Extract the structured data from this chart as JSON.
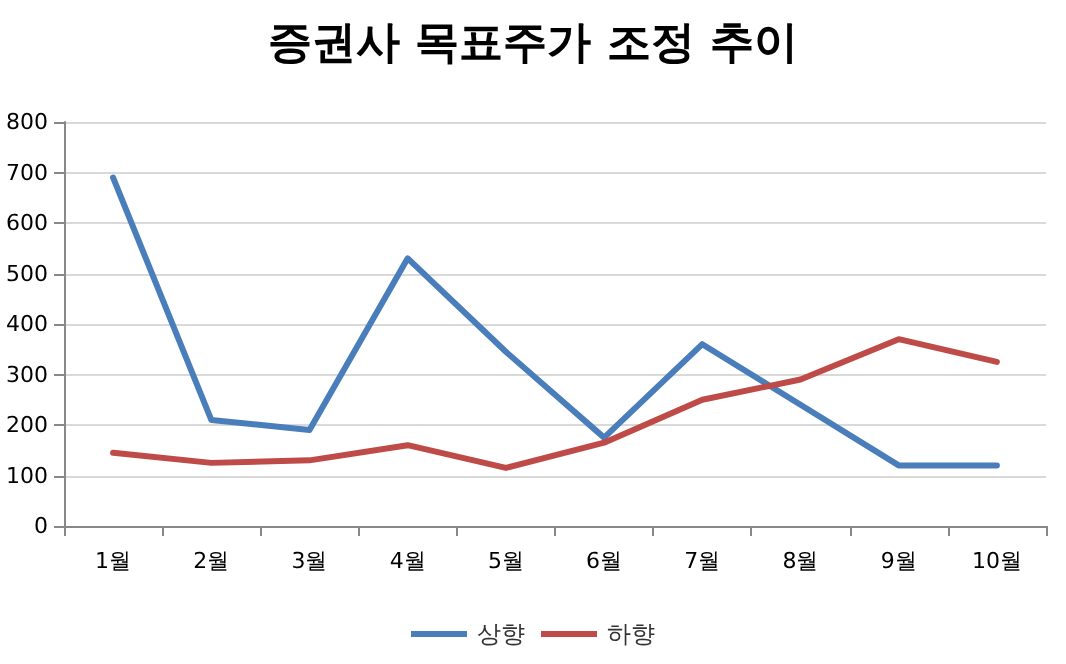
{
  "chart_data": {
    "type": "line",
    "title": "증권사 목표주가 조정 추이",
    "categories": [
      "1월",
      "2월",
      "3월",
      "4월",
      "5월",
      "6월",
      "7월",
      "8월",
      "9월",
      "10월"
    ],
    "series": [
      {
        "name": "상향",
        "color": "#4a7ebb",
        "values": [
          690,
          210,
          190,
          530,
          345,
          175,
          360,
          240,
          120,
          120
        ]
      },
      {
        "name": "하향",
        "color": "#be4b48",
        "values": [
          145,
          125,
          130,
          160,
          115,
          165,
          250,
          290,
          370,
          325
        ]
      }
    ],
    "ylim": [
      0,
      800
    ],
    "yticks": [
      0,
      100,
      200,
      300,
      400,
      500,
      600,
      700,
      800
    ],
    "grid": "y",
    "legend": "bottom",
    "marker": "none",
    "line_style": "solid"
  }
}
